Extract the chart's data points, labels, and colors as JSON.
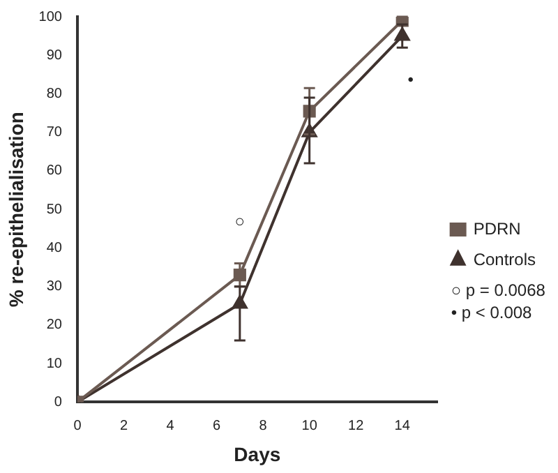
{
  "chart_data": {
    "type": "line",
    "xlabel": "Days",
    "ylabel": "% re-epithelialisation",
    "xlim": [
      0,
      15.5
    ],
    "xticks": [
      0,
      2,
      4,
      6,
      8,
      10,
      12,
      14
    ],
    "ylim": [
      0,
      100
    ],
    "yticks": [
      0,
      10,
      20,
      30,
      40,
      50,
      60,
      70,
      80,
      90,
      100
    ],
    "grid": false,
    "legend": "right",
    "line_style": "solid",
    "series": [
      {
        "name": "PDRN",
        "color": "#6b5a52",
        "marker": "square",
        "x": [
          0,
          7,
          10,
          14
        ],
        "values": [
          0,
          33,
          75.5,
          99
        ],
        "errors": [
          null,
          3,
          6,
          1
        ]
      },
      {
        "name": "Controls",
        "color": "#3f322e",
        "marker": "triangle",
        "x": [
          0,
          7,
          10,
          14
        ],
        "values": [
          0,
          25.5,
          70,
          95
        ],
        "errors": [
          null,
          [
            16,
            30
          ],
          [
            62,
            79
          ],
          [
            92,
            98
          ]
        ]
      }
    ],
    "annotations": [
      "○",
      "•",
      "○ p = 0.0068",
      "• p < 0.008"
    ]
  }
}
